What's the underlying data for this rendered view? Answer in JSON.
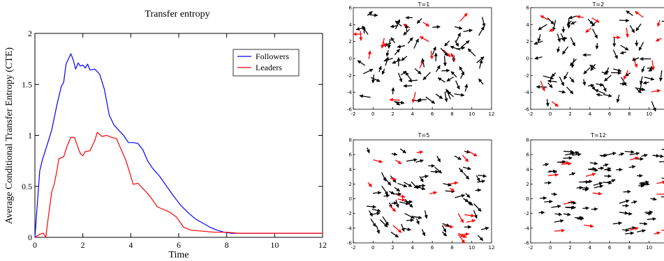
{
  "chart_data": [
    {
      "type": "line",
      "title": "Transfer entropy",
      "xlabel": "Time",
      "ylabel": "Average Conditional Transfer Entropy (CTE)",
      "xlim": [
        0,
        12
      ],
      "ylim": [
        0,
        2
      ],
      "xticks": [
        "0",
        "2",
        "4",
        "6",
        "8",
        "10",
        "12"
      ],
      "yticks": [
        "0",
        "0.5",
        "1",
        "1.5",
        "2"
      ],
      "legend_position": "top-right",
      "series": [
        {
          "name": "Followers",
          "color": "#0000ff",
          "x": [
            0,
            0.2,
            0.3,
            0.5,
            0.7,
            0.9,
            1.0,
            1.1,
            1.2,
            1.3,
            1.4,
            1.5,
            1.6,
            1.7,
            1.8,
            1.9,
            2.0,
            2.1,
            2.2,
            2.3,
            2.5,
            2.7,
            2.9,
            3.1,
            3.3,
            3.5,
            3.7,
            3.9,
            4.1,
            4.3,
            4.5,
            4.7,
            4.9,
            5.2,
            5.5,
            5.8,
            6.1,
            6.4,
            6.7,
            7.0,
            7.3,
            7.6,
            7.9,
            8.2,
            8.5,
            9,
            10,
            11,
            12
          ],
          "y": [
            0,
            0.65,
            0.75,
            0.9,
            1.05,
            1.28,
            1.38,
            1.48,
            1.52,
            1.7,
            1.75,
            1.8,
            1.74,
            1.65,
            1.71,
            1.68,
            1.69,
            1.66,
            1.7,
            1.64,
            1.65,
            1.6,
            1.45,
            1.2,
            1.1,
            1.05,
            1.0,
            0.93,
            0.93,
            0.92,
            0.86,
            0.75,
            0.68,
            0.6,
            0.5,
            0.4,
            0.31,
            0.24,
            0.18,
            0.14,
            0.1,
            0.07,
            0.05,
            0.04,
            0.04,
            0.04,
            0.04,
            0.04,
            0.04
          ]
        },
        {
          "name": "Leaders",
          "color": "#ff0000",
          "x": [
            0,
            0.2,
            0.35,
            0.45,
            0.55,
            0.7,
            0.8,
            0.9,
            1.0,
            1.2,
            1.35,
            1.5,
            1.65,
            1.8,
            1.9,
            2.0,
            2.1,
            2.3,
            2.5,
            2.6,
            2.8,
            3.0,
            3.2,
            3.4,
            3.6,
            3.8,
            4.0,
            4.1,
            4.3,
            4.5,
            4.7,
            4.9,
            5.1,
            5.3,
            5.6,
            5.9,
            6.2,
            6.5,
            7.0,
            7.5,
            8.0,
            8.5,
            9,
            10,
            11,
            12
          ],
          "y": [
            0,
            0.03,
            0.04,
            0.0,
            0.18,
            0.44,
            0.52,
            0.63,
            0.77,
            0.79,
            0.9,
            0.98,
            0.98,
            0.88,
            0.82,
            0.8,
            0.84,
            0.85,
            0.95,
            1.03,
            0.99,
            1.0,
            0.98,
            0.97,
            0.86,
            0.75,
            0.6,
            0.52,
            0.53,
            0.48,
            0.43,
            0.37,
            0.3,
            0.28,
            0.25,
            0.2,
            0.1,
            0.07,
            0.06,
            0.05,
            0.05,
            0.04,
            0.04,
            0.04,
            0.04,
            0.04
          ]
        }
      ]
    },
    {
      "type": "scatter",
      "subtype": "quiver",
      "title": "T=1",
      "xlim": [
        -2,
        12
      ],
      "ylim": [
        -6,
        6
      ],
      "xticks": [
        "-2",
        "0",
        "2",
        "4",
        "6",
        "8",
        "10",
        "12"
      ],
      "yticks": [
        "-6",
        "-4",
        "-2",
        "0",
        "2",
        "4",
        "6"
      ],
      "colors": {
        "follower": "#000000",
        "leader": "#ff0000"
      },
      "alignment": 0.1,
      "seed": 11
    },
    {
      "type": "scatter",
      "subtype": "quiver",
      "title": "T=2",
      "xlim": [
        -2,
        12
      ],
      "ylim": [
        -6,
        6
      ],
      "xticks": [
        "-2",
        "0",
        "2",
        "4",
        "6",
        "8",
        "10",
        "12"
      ],
      "yticks": [
        "-6",
        "-4",
        "-2",
        "0",
        "2",
        "4",
        "6"
      ],
      "colors": {
        "follower": "#000000",
        "leader": "#ff0000"
      },
      "alignment": 0.35,
      "seed": 23
    },
    {
      "type": "scatter",
      "subtype": "quiver",
      "title": "T=5",
      "xlim": [
        -2,
        12
      ],
      "ylim": [
        -6,
        8
      ],
      "xticks": [
        "-2",
        "0",
        "2",
        "4",
        "6",
        "8",
        "10",
        "12"
      ],
      "yticks": [
        "-6",
        "-4",
        "-2",
        "0",
        "2",
        "4",
        "6",
        "8"
      ],
      "colors": {
        "follower": "#000000",
        "leader": "#ff0000"
      },
      "alignment": 0.75,
      "seed": 37
    },
    {
      "type": "scatter",
      "subtype": "quiver",
      "title": "T=12",
      "xlim": [
        -2,
        12
      ],
      "ylim": [
        -6,
        8
      ],
      "xticks": [
        "-2",
        "0",
        "2",
        "4",
        "6",
        "8",
        "10",
        "12"
      ],
      "yticks": [
        "-6",
        "-4",
        "-2",
        "0",
        "2",
        "4",
        "6",
        "8"
      ],
      "colors": {
        "follower": "#000000",
        "leader": "#ff0000"
      },
      "alignment": 0.92,
      "seed": 53
    }
  ]
}
